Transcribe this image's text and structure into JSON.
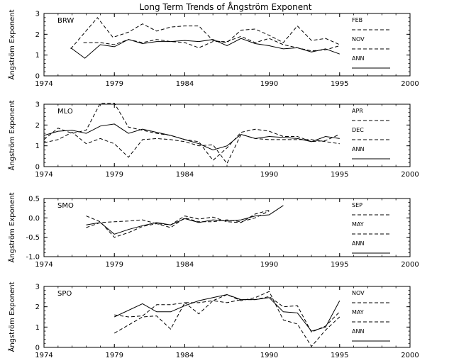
{
  "title": "Long Term Trends of Ångström Exponent",
  "chart_data": [
    {
      "type": "line",
      "station": "BRW",
      "ylabel": "Ångström Exponent",
      "xlim": [
        1974,
        2000
      ],
      "ylim": [
        0,
        3
      ],
      "x_ticks": [
        "1974",
        "1979",
        "1984",
        "1990",
        "1995",
        "2000"
      ],
      "y_ticks": [
        "0",
        "1",
        "2",
        "3"
      ],
      "legend": [
        "FEB",
        "NOV",
        "ANN"
      ],
      "series": [
        {
          "name": "FEB",
          "style": "dashed",
          "points": [
            [
              1975.9,
              1.3
            ],
            [
              1977.8,
              2.8
            ],
            [
              1978.9,
              1.85
            ],
            [
              1980,
              2.1
            ],
            [
              1981,
              2.5
            ],
            [
              1982,
              2.15
            ],
            [
              1983,
              2.35
            ],
            [
              1984,
              2.4
            ],
            [
              1985,
              2.4
            ],
            [
              1986,
              1.7
            ],
            [
              1987,
              1.6
            ],
            [
              1988,
              2.2
            ],
            [
              1989,
              2.25
            ],
            [
              1990,
              1.95
            ],
            [
              1991,
              1.6
            ],
            [
              1992,
              2.4
            ],
            [
              1993,
              1.7
            ],
            [
              1994,
              1.8
            ],
            [
              1995,
              1.5
            ]
          ]
        },
        {
          "name": "NOV",
          "style": "dashed",
          "points": [
            [
              1976.8,
              1.6
            ],
            [
              1978,
              1.6
            ],
            [
              1979,
              1.5
            ],
            [
              1980,
              1.75
            ],
            [
              1981,
              1.6
            ],
            [
              1982,
              1.75
            ],
            [
              1983,
              1.65
            ],
            [
              1984,
              1.6
            ],
            [
              1985,
              1.35
            ],
            [
              1986,
              1.65
            ],
            [
              1987,
              1.65
            ],
            [
              1988,
              1.9
            ],
            [
              1989,
              1.6
            ],
            [
              1990,
              1.8
            ],
            [
              1991,
              1.5
            ],
            [
              1992,
              1.35
            ],
            [
              1993,
              1.2
            ],
            [
              1994,
              1.25
            ],
            [
              1995,
              1.45
            ]
          ]
        },
        {
          "name": "ANN",
          "style": "solid",
          "points": [
            [
              1975.9,
              1.35
            ],
            [
              1976.9,
              0.85
            ],
            [
              1978,
              1.5
            ],
            [
              1979,
              1.4
            ],
            [
              1980,
              1.75
            ],
            [
              1981,
              1.55
            ],
            [
              1982,
              1.65
            ],
            [
              1983,
              1.65
            ],
            [
              1984,
              1.7
            ],
            [
              1985,
              1.65
            ],
            [
              1986,
              1.75
            ],
            [
              1987,
              1.45
            ],
            [
              1988,
              1.8
            ],
            [
              1989,
              1.55
            ],
            [
              1990,
              1.45
            ],
            [
              1991,
              1.3
            ],
            [
              1992,
              1.35
            ],
            [
              1993,
              1.15
            ],
            [
              1994,
              1.3
            ],
            [
              1995,
              1.05
            ]
          ]
        }
      ]
    },
    {
      "type": "line",
      "station": "MLO",
      "ylabel": "Ångström Exponent",
      "xlim": [
        1974,
        2000
      ],
      "ylim": [
        0,
        3
      ],
      "x_ticks": [
        "1974",
        "1979",
        "1984",
        "1990",
        "1995",
        "2000"
      ],
      "y_ticks": [
        "0",
        "1",
        "2",
        "3"
      ],
      "legend": [
        "APR",
        "DEC",
        "ANN"
      ],
      "series": [
        {
          "name": "APR",
          "style": "dashed",
          "points": [
            [
              1974,
              1.3
            ],
            [
              1975,
              1.85
            ],
            [
              1976,
              1.6
            ],
            [
              1977,
              1.75
            ],
            [
              1978,
              3.05
            ],
            [
              1979,
              3.05
            ],
            [
              1980,
              1.9
            ],
            [
              1981,
              1.75
            ],
            [
              1982,
              1.6
            ],
            [
              1983,
              1.5
            ],
            [
              1984,
              1.3
            ],
            [
              1985,
              1.2
            ],
            [
              1986,
              0.3
            ],
            [
              1987,
              0.9
            ],
            [
              1988,
              1.65
            ],
            [
              1989,
              1.8
            ],
            [
              1990,
              1.7
            ],
            [
              1991,
              1.45
            ],
            [
              1992,
              1.45
            ],
            [
              1993,
              1.2
            ],
            [
              1994,
              1.25
            ],
            [
              1995,
              1.55
            ]
          ]
        },
        {
          "name": "DEC",
          "style": "dashed",
          "points": [
            [
              1974,
              1.15
            ],
            [
              1975,
              1.3
            ],
            [
              1976,
              1.65
            ],
            [
              1977,
              1.1
            ],
            [
              1978,
              1.35
            ],
            [
              1979,
              1.1
            ],
            [
              1980,
              0.45
            ],
            [
              1981,
              1.3
            ],
            [
              1982,
              1.35
            ],
            [
              1983,
              1.3
            ],
            [
              1984,
              1.2
            ],
            [
              1985,
              1.0
            ],
            [
              1986,
              1.05
            ],
            [
              1987,
              0.15
            ],
            [
              1988,
              1.55
            ],
            [
              1989,
              1.35
            ],
            [
              1990,
              1.3
            ],
            [
              1991,
              1.3
            ],
            [
              1992,
              1.3
            ],
            [
              1993,
              1.3
            ],
            [
              1994,
              1.2
            ],
            [
              1995,
              1.1
            ]
          ]
        },
        {
          "name": "ANN",
          "style": "solid",
          "points": [
            [
              1974,
              1.5
            ],
            [
              1975,
              1.7
            ],
            [
              1976,
              1.75
            ],
            [
              1977,
              1.6
            ],
            [
              1978,
              1.95
            ],
            [
              1979,
              2.05
            ],
            [
              1980,
              1.6
            ],
            [
              1981,
              1.8
            ],
            [
              1982,
              1.65
            ],
            [
              1983,
              1.5
            ],
            [
              1984,
              1.3
            ],
            [
              1985,
              1.1
            ],
            [
              1986,
              0.8
            ],
            [
              1987,
              1.0
            ],
            [
              1988,
              1.55
            ],
            [
              1989,
              1.35
            ],
            [
              1990,
              1.45
            ],
            [
              1991,
              1.4
            ],
            [
              1992,
              1.35
            ],
            [
              1993,
              1.2
            ],
            [
              1994,
              1.45
            ],
            [
              1995,
              1.35
            ]
          ]
        }
      ]
    },
    {
      "type": "line",
      "station": "SMO",
      "ylabel": "Ångström Exponent",
      "xlim": [
        1974,
        2000
      ],
      "ylim": [
        -1.0,
        0.5
      ],
      "x_ticks": [
        "1974",
        "1979",
        "1984",
        "1990",
        "1995",
        "2000"
      ],
      "y_ticks": [
        "-1.0",
        "-0.5",
        "0.0",
        "0.5"
      ],
      "legend": [
        "SEP",
        "MAY",
        "ANN"
      ],
      "series": [
        {
          "name": "SEP",
          "style": "dashed",
          "points": [
            [
              1977,
              0.05
            ],
            [
              1978,
              -0.1
            ],
            [
              1979,
              -0.5
            ],
            [
              1980,
              -0.38
            ],
            [
              1981,
              -0.22
            ],
            [
              1982,
              -0.15
            ],
            [
              1983,
              -0.25
            ],
            [
              1984,
              0.0
            ],
            [
              1985,
              -0.1
            ],
            [
              1986,
              -0.1
            ],
            [
              1987,
              -0.05
            ],
            [
              1988,
              -0.1
            ],
            [
              1989,
              0.0
            ],
            [
              1990,
              0.18
            ]
          ]
        },
        {
          "name": "MAY",
          "style": "dashed",
          "points": [
            [
              1977,
              -0.25
            ],
            [
              1978,
              -0.12
            ],
            [
              1979,
              -0.1
            ],
            [
              1980,
              -0.08
            ],
            [
              1981,
              -0.05
            ],
            [
              1982,
              -0.15
            ],
            [
              1983,
              -0.18
            ],
            [
              1984,
              0.05
            ],
            [
              1985,
              -0.03
            ],
            [
              1986,
              0.02
            ],
            [
              1987,
              -0.1
            ],
            [
              1988,
              -0.12
            ],
            [
              1989,
              0.1
            ],
            [
              1990,
              0.2
            ]
          ]
        },
        {
          "name": "ANN",
          "style": "solid",
          "points": [
            [
              1977,
              -0.18
            ],
            [
              1978,
              -0.12
            ],
            [
              1979,
              -0.42
            ],
            [
              1980,
              -0.3
            ],
            [
              1981,
              -0.2
            ],
            [
              1982,
              -0.12
            ],
            [
              1983,
              -0.18
            ],
            [
              1984,
              -0.02
            ],
            [
              1985,
              -0.12
            ],
            [
              1986,
              -0.05
            ],
            [
              1987,
              -0.08
            ],
            [
              1988,
              -0.05
            ],
            [
              1989,
              0.05
            ],
            [
              1990,
              0.08
            ],
            [
              1991,
              0.32
            ]
          ]
        }
      ]
    },
    {
      "type": "line",
      "station": "SPO",
      "ylabel": "Ångström Exponent",
      "xlim": [
        1974,
        2000
      ],
      "ylim": [
        0,
        3
      ],
      "x_ticks": [
        "1974",
        "1979",
        "1984",
        "1990",
        "1995",
        "2000"
      ],
      "y_ticks": [
        "0",
        "1",
        "2",
        "3"
      ],
      "legend": [
        "NOV",
        "MAY",
        "ANN"
      ],
      "series": [
        {
          "name": "NOV",
          "style": "dashed",
          "points": [
            [
              1979,
              1.6
            ],
            [
              1980,
              1.5
            ],
            [
              1981,
              1.55
            ],
            [
              1982,
              2.1
            ],
            [
              1983,
              2.1
            ],
            [
              1984,
              2.2
            ],
            [
              1985,
              1.65
            ],
            [
              1986,
              2.3
            ],
            [
              1987,
              2.2
            ],
            [
              1988,
              2.35
            ],
            [
              1989,
              2.35
            ],
            [
              1990,
              2.5
            ],
            [
              1991,
              2.0
            ],
            [
              1992,
              2.05
            ],
            [
              1993,
              0.75
            ],
            [
              1994,
              1.05
            ],
            [
              1995,
              1.75
            ]
          ]
        },
        {
          "name": "MAY",
          "style": "dashed",
          "points": [
            [
              1979,
              0.7
            ],
            [
              1980,
              1.1
            ],
            [
              1981,
              1.5
            ],
            [
              1982,
              1.55
            ],
            [
              1983,
              0.9
            ],
            [
              1984,
              2.2
            ],
            [
              1985,
              2.2
            ],
            [
              1986,
              2.3
            ],
            [
              1987,
              2.6
            ],
            [
              1988,
              2.3
            ],
            [
              1989,
              2.45
            ],
            [
              1990,
              2.75
            ],
            [
              1991,
              1.35
            ],
            [
              1992,
              1.15
            ],
            [
              1993,
              0.05
            ],
            [
              1994,
              0.85
            ],
            [
              1995,
              1.5
            ]
          ]
        },
        {
          "name": "ANN",
          "style": "solid",
          "points": [
            [
              1979,
              1.5
            ],
            [
              1981,
              2.15
            ],
            [
              1982,
              1.75
            ],
            [
              1983,
              1.75
            ],
            [
              1984,
              2.05
            ],
            [
              1985,
              2.3
            ],
            [
              1986,
              2.45
            ],
            [
              1987,
              2.6
            ],
            [
              1988,
              2.35
            ],
            [
              1989,
              2.35
            ],
            [
              1990,
              2.45
            ],
            [
              1991,
              1.75
            ],
            [
              1992,
              1.7
            ],
            [
              1993,
              0.8
            ],
            [
              1994,
              1.0
            ],
            [
              1995,
              2.3
            ]
          ]
        }
      ]
    }
  ]
}
